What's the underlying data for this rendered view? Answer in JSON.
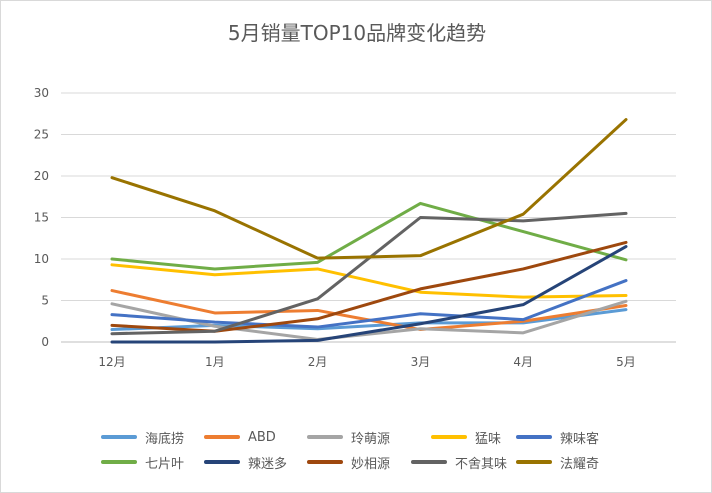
{
  "chart_data": {
    "type": "line",
    "title": "5月销量TOP10品牌变化趋势",
    "xlabel": "",
    "ylabel": "",
    "categories": [
      "12月",
      "1月",
      "2月",
      "3月",
      "4月",
      "5月"
    ],
    "ylim": [
      0,
      30
    ],
    "yticks": [
      "0",
      "5",
      "10",
      "15",
      "20",
      "25",
      "30"
    ],
    "grid": true,
    "legend_position": "bottom",
    "series": [
      {
        "name": "海底捞",
        "color": "#5b9bd5",
        "values": [
          1.5,
          2.0,
          1.6,
          2.3,
          2.3,
          3.9
        ]
      },
      {
        "name": "ABD",
        "color": "#ed7d31",
        "values": [
          6.2,
          3.5,
          3.8,
          1.5,
          2.5,
          4.4
        ]
      },
      {
        "name": "玲萌源",
        "color": "#a5a5a5",
        "values": [
          4.6,
          1.9,
          0.3,
          1.6,
          1.1,
          4.9
        ]
      },
      {
        "name": "猛味",
        "color": "#ffc000",
        "values": [
          9.3,
          8.1,
          8.8,
          6.0,
          5.4,
          5.6
        ]
      },
      {
        "name": "辣味客",
        "color": "#4472c4",
        "values": [
          3.3,
          2.4,
          1.8,
          3.4,
          2.7,
          7.4
        ]
      },
      {
        "name": "七片叶",
        "color": "#70ad47",
        "values": [
          10.0,
          8.8,
          9.6,
          16.7,
          13.3,
          9.9
        ]
      },
      {
        "name": "辣迷多",
        "color": "#264478",
        "values": [
          0.0,
          0.0,
          0.2,
          2.2,
          4.5,
          11.5
        ]
      },
      {
        "name": "妙相源",
        "color": "#9e480e",
        "values": [
          2.0,
          1.3,
          2.8,
          6.4,
          8.8,
          12.0
        ]
      },
      {
        "name": "不舍其味",
        "color": "#636363",
        "values": [
          1.0,
          1.3,
          5.2,
          15.0,
          14.6,
          15.5
        ]
      },
      {
        "name": "法耀奇",
        "color": "#997300",
        "values": [
          19.8,
          15.8,
          10.1,
          10.4,
          15.4,
          26.8
        ]
      }
    ]
  }
}
